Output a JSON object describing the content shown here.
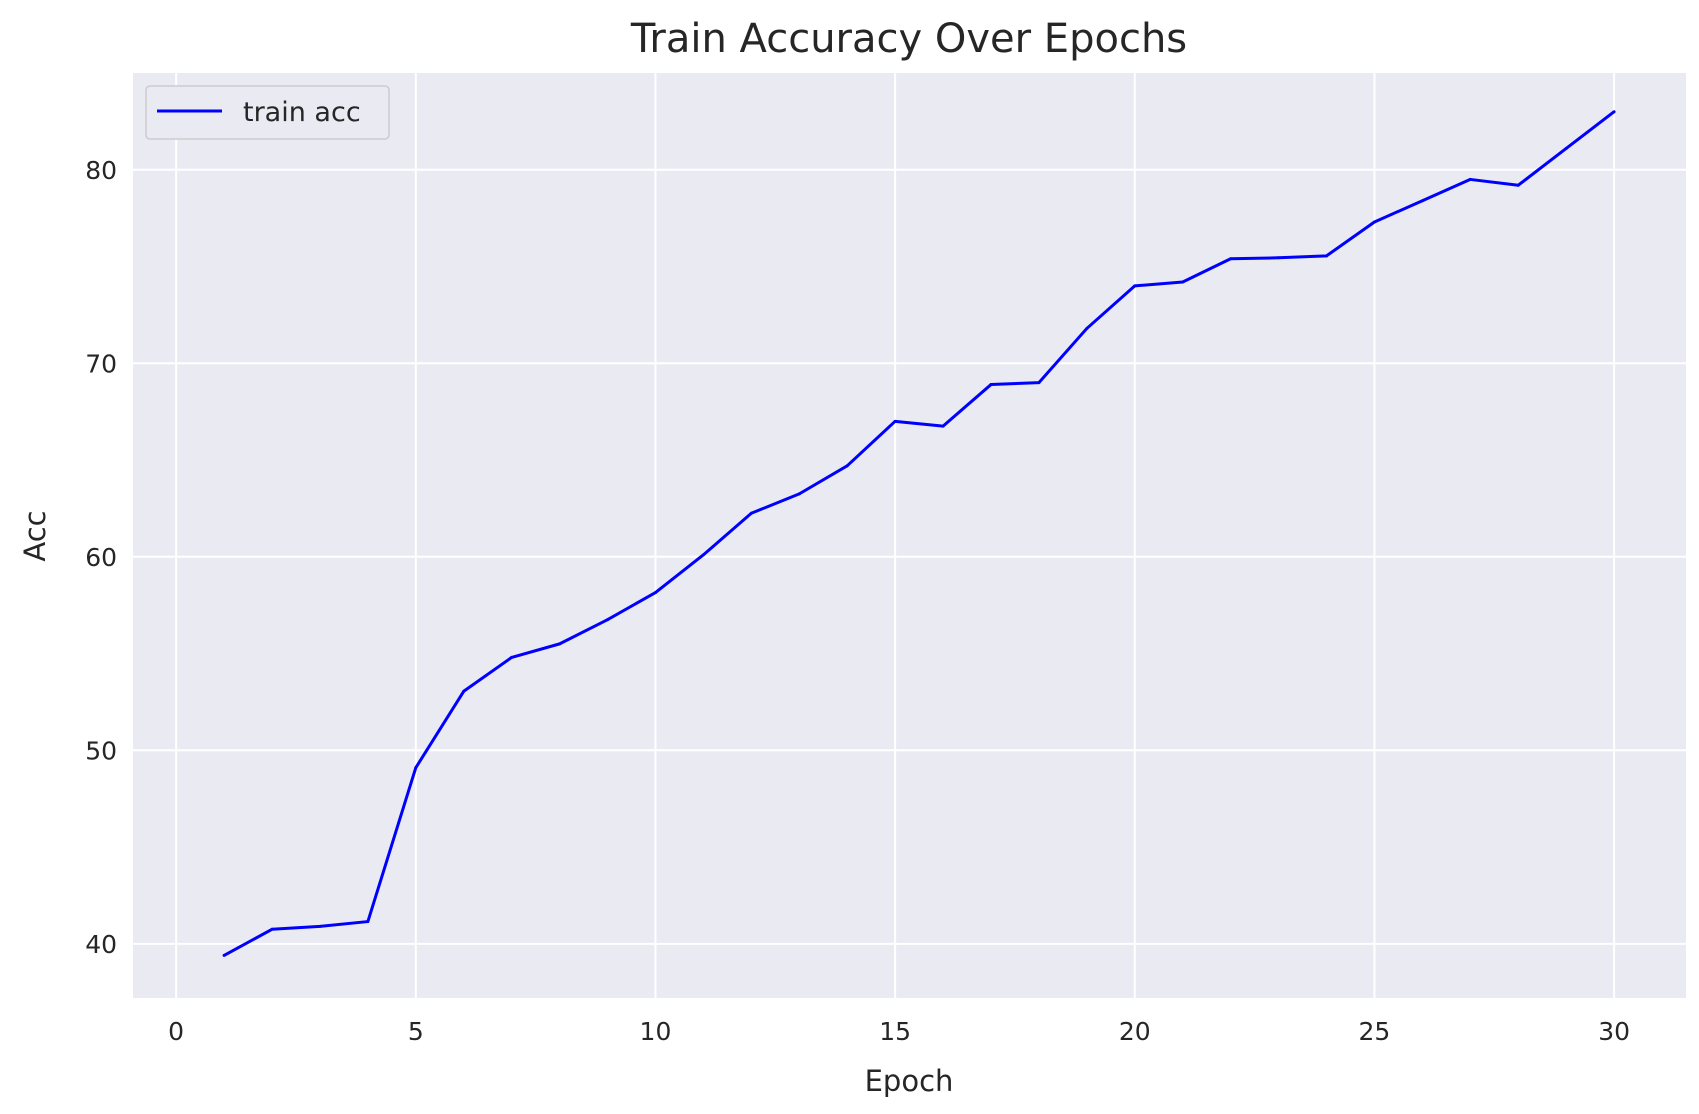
{
  "chart_data": {
    "type": "line",
    "title": "Train Accuracy Over Epochs",
    "xlabel": "Epoch",
    "ylabel": "Acc",
    "xlim": [
      -0.9,
      31.5
    ],
    "ylim": [
      37.2,
      85.0
    ],
    "xticks": [
      0,
      5,
      10,
      15,
      20,
      25,
      30
    ],
    "yticks": [
      40,
      50,
      60,
      70,
      80
    ],
    "grid": true,
    "legend_position": "top-left",
    "colors": {
      "background": "#eaeaf2",
      "grid": "#ffffff",
      "line": "#0000ff"
    },
    "series": [
      {
        "name": "train acc",
        "x": [
          1,
          2,
          3,
          4,
          5,
          6,
          7,
          8,
          9,
          10,
          11,
          12,
          13,
          14,
          15,
          16,
          17,
          18,
          19,
          20,
          21,
          22,
          23,
          24,
          25,
          26,
          27,
          28,
          29,
          30
        ],
        "values": [
          39.4,
          40.75,
          40.9,
          41.15,
          49.1,
          53.05,
          54.8,
          55.5,
          56.75,
          58.15,
          60.1,
          62.25,
          63.25,
          64.7,
          67.0,
          66.75,
          68.9,
          69.0,
          71.8,
          74.0,
          74.2,
          75.4,
          75.45,
          75.55,
          77.3,
          78.4,
          79.5,
          79.2,
          81.1,
          83.0
        ]
      }
    ]
  }
}
